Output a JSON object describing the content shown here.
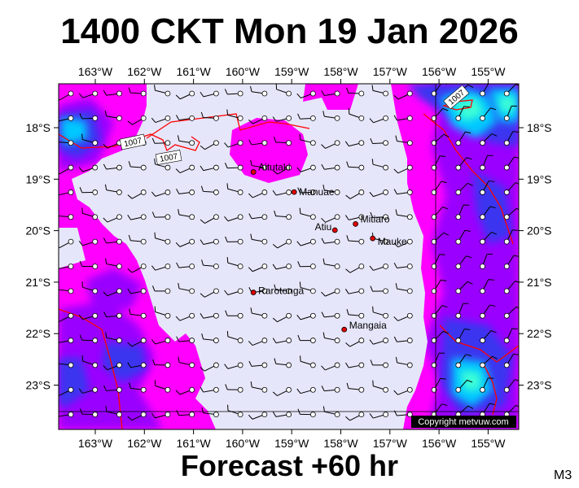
{
  "header": {
    "title": "1400 CKT Mon 19 Jan 2026"
  },
  "footer": {
    "forecast": "Forecast +60 hr",
    "model": "M3"
  },
  "map": {
    "copyright": "Copyright metvuw.com",
    "lon_ticks": [
      "163°W",
      "162°W",
      "161°W",
      "160°W",
      "159°W",
      "158°W",
      "157°W",
      "156°W",
      "155°W"
    ],
    "lat_ticks": [
      "18°S",
      "19°S",
      "20°S",
      "21°S",
      "22°S",
      "23°S"
    ],
    "colors": {
      "calm": "#e6e6fa",
      "light": "#ff00ff",
      "moderate": "#9a00ff",
      "strong": "#3a36f0",
      "heavy": "#00c8ff",
      "very_heavy": "#3cffd6",
      "isobar": "#ff0000"
    },
    "isobars": [
      {
        "label": "1007"
      },
      {
        "label": "1007"
      },
      {
        "label": "1007"
      }
    ],
    "places": [
      {
        "name": "Aitutaki",
        "lon": -159.78,
        "lat": -18.86
      },
      {
        "name": "Manuae",
        "lon": -158.95,
        "lat": -19.25
      },
      {
        "name": "Mitiaro",
        "lon": -157.7,
        "lat": -19.87
      },
      {
        "name": "Atiu",
        "lon": -158.12,
        "lat": -19.99
      },
      {
        "name": "Mauke",
        "lon": -157.35,
        "lat": -20.15
      },
      {
        "name": "Rarotonga",
        "lon": -159.78,
        "lat": -21.2
      },
      {
        "name": "Mangaia",
        "lon": -157.93,
        "lat": -21.92
      }
    ]
  }
}
